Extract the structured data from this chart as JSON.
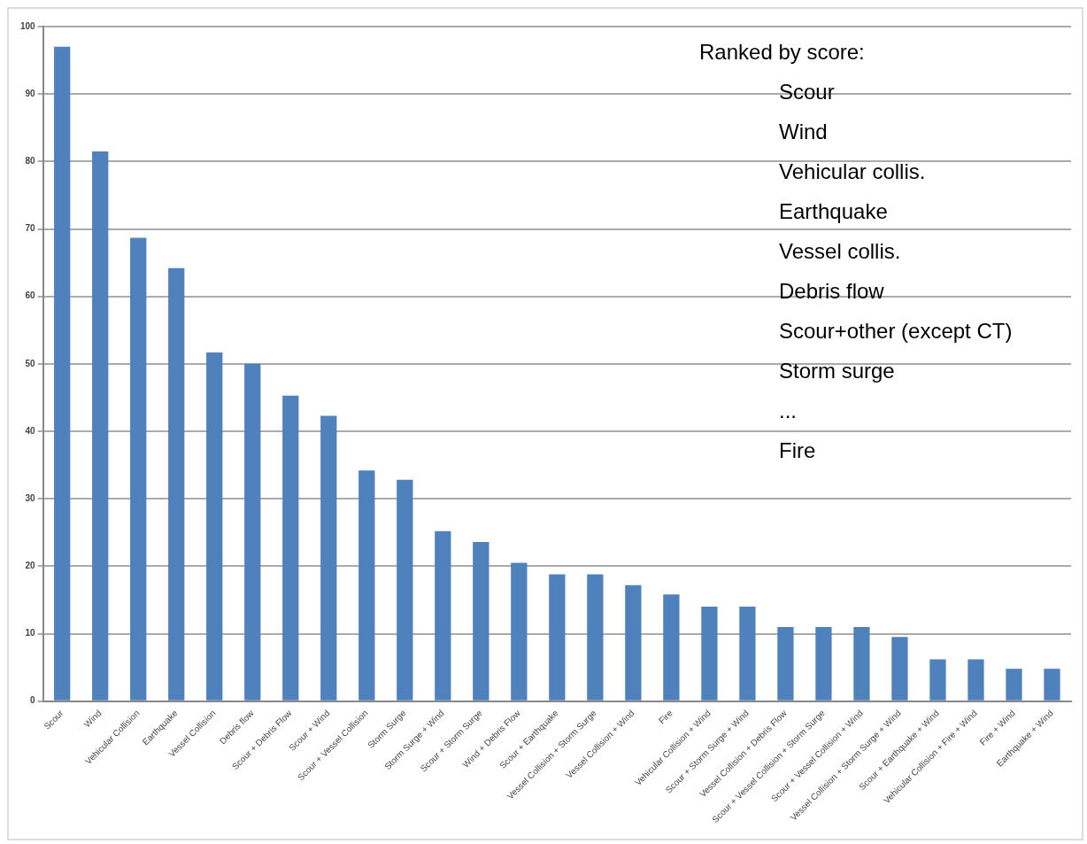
{
  "chart_data": {
    "type": "bar",
    "categories": [
      "Scour",
      "Wind",
      "Vehicular Collision",
      "Earthquake",
      "Vessel Collision",
      "Debris flow",
      "Scour + Debris Flow",
      "Scour + Wind",
      "Scour + Vessel Collision",
      "Storm Surge",
      "Storm Surge + Wind",
      "Scour + Storm Surge",
      "Wind + Debris Flow",
      "Scour + Earthquake",
      "Vessel Collision + Storm Surge",
      "Vessel Collision + Wind",
      "Fire",
      "Vehicular Collision + Wind",
      "Scour + Storm Surge + Wind",
      "Vessel Collision + Debris Flow",
      "Scour + Vessel Collision + Storm Surge",
      "Scour + Vessel Collision + Wind",
      "Vessel Collision + Storm Surge + Wind",
      "Scour + Earthquake + Wind",
      "Vehicular Collision + Fire + Wind",
      "Fire + Wind",
      "Earthquake + Wind"
    ],
    "values": [
      97,
      81.5,
      68.7,
      64.2,
      51.7,
      50,
      45.3,
      42.3,
      34.2,
      32.8,
      25.2,
      23.6,
      20.5,
      18.8,
      18.8,
      17.2,
      15.8,
      14,
      14,
      11,
      11,
      11,
      9.5,
      6.2,
      6.2,
      4.8,
      4.8
    ],
    "color": "#4f81bd",
    "ylim": [
      0,
      100
    ],
    "yticks": [
      0,
      10,
      20,
      30,
      40,
      50,
      60,
      70,
      80,
      90,
      100
    ],
    "grid": "y",
    "legend": false,
    "annotations": [
      "Ranked by score:",
      "Scour",
      "Wind",
      "Vehicular collis.",
      "Earthquake",
      "Vessel collis.",
      "Debris flow",
      "Scour+other (except CT)",
      "Storm surge",
      "...",
      "Fire"
    ]
  }
}
